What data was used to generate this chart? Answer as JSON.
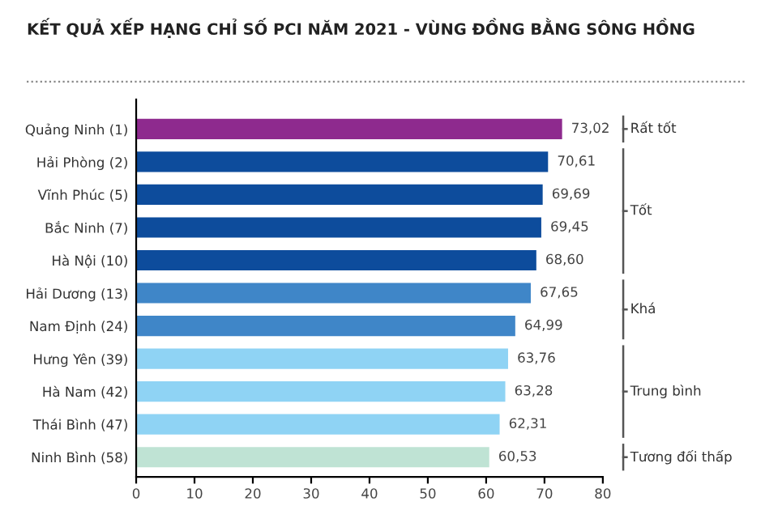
{
  "chart_data": {
    "type": "bar",
    "orientation": "horizontal",
    "title": "KẾT QUẢ XẾP HẠNG CHỈ SỐ PCI NĂM 2021 - VÙNG ĐỒNG BẰNG SÔNG HỒNG",
    "categories": [
      "Quảng Ninh (1)",
      "Hải Phòng (2)",
      "Vĩnh Phúc (5)",
      "Bắc Ninh (7)",
      "Hà Nội (10)",
      "Hải Dương (13)",
      "Nam Định (24)",
      "Hưng Yên (39)",
      "Hà Nam (42)",
      "Thái Bình (47)",
      "Ninh Bình (58)"
    ],
    "values": [
      73.02,
      70.61,
      69.69,
      69.45,
      68.6,
      67.65,
      64.99,
      63.76,
      63.28,
      62.31,
      60.53
    ],
    "value_labels": [
      "73,02",
      "70,61",
      "69,69",
      "69,45",
      "68,60",
      "67,65",
      "64,99",
      "63,76",
      "63,28",
      "62,31",
      "60,53"
    ],
    "colors": [
      "#8e2a8e",
      "#0d4c9c",
      "#0d4c9c",
      "#0d4c9c",
      "#0d4c9c",
      "#3f86c8",
      "#3f86c8",
      "#8fd3f4",
      "#8fd3f4",
      "#8fd3f4",
      "#bfe3d4"
    ],
    "xlim": [
      0,
      80
    ],
    "xticks": [
      0,
      10,
      20,
      30,
      40,
      50,
      60,
      70,
      80
    ],
    "grid": false,
    "legend": false,
    "annotations": [
      "Rất tốt",
      "Tốt",
      "Khá",
      "Trung bình",
      "Tương đối thấp"
    ]
  }
}
